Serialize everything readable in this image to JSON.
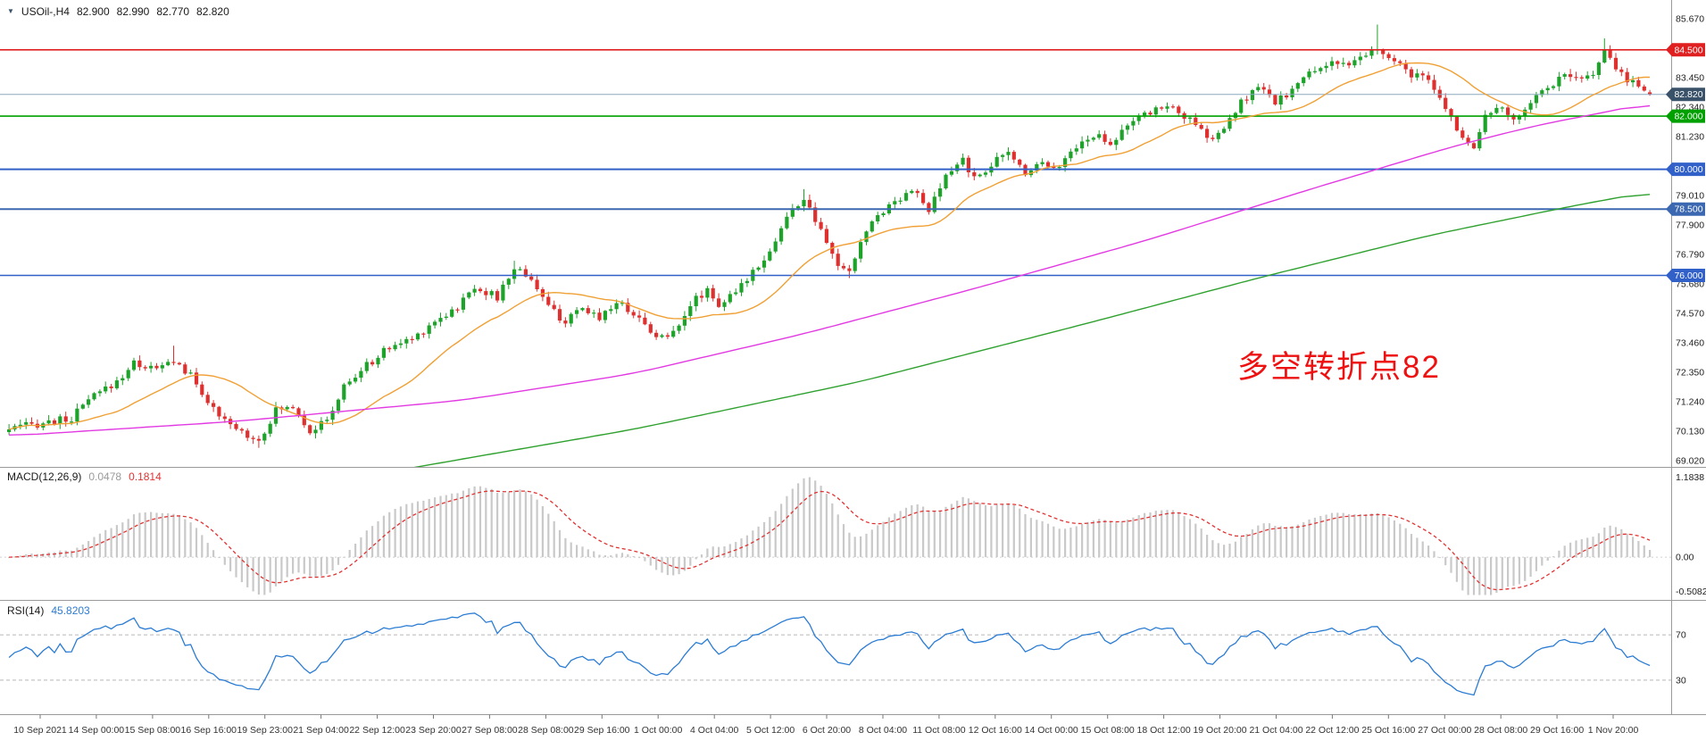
{
  "header": {
    "symbol_period": "USOil-,H4",
    "open": "82.900",
    "high": "82.990",
    "low": "82.770",
    "close": "82.820"
  },
  "indicator_labels": {
    "macd_name": "MACD(12,26,9)",
    "macd_main": "0.0478",
    "macd_signal": "0.1814",
    "rsi_name": "RSI(14)",
    "rsi_value": "45.8203"
  },
  "annotation": {
    "text": "多空转折点82",
    "color": "#ee1111"
  },
  "chart_data": {
    "type": "candlestick",
    "symbol": "USOil-",
    "timeframe": "H4",
    "current_ohlc": {
      "open": 82.9,
      "high": 82.99,
      "low": 82.77,
      "close": 82.82
    },
    "bars_total": 290,
    "price_axis": {
      "min": 69.02,
      "max": 85.67,
      "ticks": [
        "85.670",
        "84.560",
        "83.450",
        "82.340",
        "81.230",
        "80.120",
        "79.010",
        "77.900",
        "76.790",
        "75.680",
        "74.570",
        "73.460",
        "72.350",
        "71.240",
        "70.130",
        "69.020"
      ]
    },
    "time_axis": [
      "10 Sep 2021",
      "14 Sep 00:00",
      "15 Sep 08:00",
      "16 Sep 16:00",
      "19 Sep 23:00",
      "21 Sep 04:00",
      "22 Sep 12:00",
      "23 Sep 20:00",
      "27 Sep 08:00",
      "28 Sep 08:00",
      "29 Sep 16:00",
      "1 Oct 00:00",
      "4 Oct 04:00",
      "5 Oct 12:00",
      "6 Oct 20:00",
      "8 Oct 04:00",
      "11 Oct 08:00",
      "12 Oct 16:00",
      "14 Oct 00:00",
      "15 Oct 08:00",
      "18 Oct 12:00",
      "19 Oct 20:00",
      "21 Oct 04:00",
      "22 Oct 12:00",
      "25 Oct 16:00",
      "27 Oct 00:00",
      "28 Oct 08:00",
      "29 Oct 16:00",
      "1 Nov 20:00"
    ],
    "price_path_anchors": [
      [
        0,
        70.2
      ],
      [
        6,
        70.45
      ],
      [
        11,
        70.6
      ],
      [
        14,
        71.3
      ],
      [
        19,
        72.0
      ],
      [
        22,
        72.7
      ],
      [
        26,
        72.45
      ],
      [
        29,
        72.8
      ],
      [
        32,
        72.2
      ],
      [
        34,
        71.6
      ],
      [
        37,
        70.6
      ],
      [
        41,
        70.1
      ],
      [
        44,
        69.8
      ],
      [
        47,
        70.9
      ],
      [
        50,
        71.1
      ],
      [
        53,
        70.15
      ],
      [
        56,
        70.5
      ],
      [
        59,
        71.8
      ],
      [
        63,
        72.6
      ],
      [
        67,
        73.3
      ],
      [
        71,
        73.6
      ],
      [
        75,
        74.3
      ],
      [
        79,
        74.8
      ],
      [
        82,
        75.6
      ],
      [
        86,
        75.15
      ],
      [
        89,
        76.3
      ],
      [
        92,
        75.9
      ],
      [
        95,
        74.8
      ],
      [
        98,
        74.25
      ],
      [
        101,
        74.7
      ],
      [
        104,
        74.45
      ],
      [
        107,
        75.0
      ],
      [
        110,
        74.6
      ],
      [
        113,
        73.9
      ],
      [
        116,
        73.6
      ],
      [
        120,
        74.9
      ],
      [
        123,
        75.5
      ],
      [
        125,
        74.9
      ],
      [
        128,
        75.3
      ],
      [
        131,
        76.2
      ],
      [
        134,
        76.9
      ],
      [
        137,
        78.2
      ],
      [
        140,
        78.9
      ],
      [
        143,
        77.6
      ],
      [
        146,
        76.4
      ],
      [
        148,
        76.05
      ],
      [
        150,
        77.3
      ],
      [
        153,
        78.3
      ],
      [
        156,
        78.8
      ],
      [
        159,
        79.3
      ],
      [
        162,
        78.4
      ],
      [
        165,
        79.7
      ],
      [
        168,
        80.4
      ],
      [
        170,
        79.6
      ],
      [
        173,
        80.2
      ],
      [
        176,
        80.6
      ],
      [
        179,
        79.9
      ],
      [
        182,
        80.3
      ],
      [
        185,
        80.1
      ],
      [
        188,
        80.9
      ],
      [
        192,
        81.3
      ],
      [
        194,
        81.0
      ],
      [
        197,
        81.7
      ],
      [
        200,
        82.0
      ],
      [
        203,
        82.4
      ],
      [
        206,
        82.2
      ],
      [
        209,
        81.6
      ],
      [
        212,
        81.1
      ],
      [
        215,
        81.8
      ],
      [
        217,
        82.5
      ],
      [
        220,
        83.1
      ],
      [
        223,
        82.5
      ],
      [
        226,
        83.0
      ],
      [
        229,
        83.6
      ],
      [
        233,
        84.1
      ],
      [
        236,
        83.8
      ],
      [
        238,
        84.2
      ],
      [
        241,
        84.5
      ],
      [
        244,
        84.0
      ],
      [
        247,
        83.6
      ],
      [
        250,
        83.3
      ],
      [
        253,
        82.3
      ],
      [
        256,
        81.2
      ],
      [
        258,
        80.9
      ],
      [
        260,
        81.9
      ],
      [
        262,
        82.4
      ],
      [
        265,
        81.8
      ],
      [
        268,
        82.6
      ],
      [
        271,
        83.1
      ],
      [
        274,
        83.5
      ],
      [
        277,
        83.3
      ],
      [
        279,
        83.7
      ],
      [
        281,
        84.4
      ],
      [
        283,
        83.8
      ],
      [
        285,
        83.4
      ],
      [
        287,
        83.2
      ],
      [
        289,
        82.82
      ]
    ],
    "wick_extremes": [
      [
        29,
        73.35,
        "high"
      ],
      [
        44,
        69.5,
        "low"
      ],
      [
        89,
        76.55,
        "high"
      ],
      [
        140,
        79.25,
        "high"
      ],
      [
        148,
        75.9,
        "low"
      ],
      [
        241,
        85.45,
        "high"
      ],
      [
        281,
        84.93,
        "high"
      ]
    ],
    "horizontal_levels": [
      {
        "label": "84.500",
        "price": 84.5,
        "line": "#e02020",
        "badge": "#e02020",
        "width": 1.6,
        "role": "resistance"
      },
      {
        "label": "82.000",
        "price": 82.0,
        "line": "#00a000",
        "badge": "#00a000",
        "width": 1.6,
        "role": "support"
      },
      {
        "label": "80.000",
        "price": 80.0,
        "line": "#3060c8",
        "badge": "#3060c8",
        "width": 2,
        "role": "support"
      },
      {
        "label": "78.500",
        "price": 78.5,
        "line": "#3b68b0",
        "badge": "#3b68b0",
        "width": 2,
        "role": "support"
      },
      {
        "label": "76.000",
        "price": 76.0,
        "line": "#3060c8",
        "badge": "#3060c8",
        "width": 1.6,
        "role": "support"
      },
      {
        "label": "82.820",
        "price": 82.82,
        "line": "#8aa8bf",
        "badge": "#3a5269",
        "width": 1,
        "role": "current-price"
      }
    ],
    "moving_averages": [
      {
        "name": "fast",
        "period": 20,
        "color": "#f0a035"
      },
      {
        "name": "medium",
        "color": "#e23ae2",
        "anchors": [
          [
            0,
            69.95
          ],
          [
            40,
            70.5
          ],
          [
            80,
            71.3
          ],
          [
            110,
            72.3
          ],
          [
            140,
            73.8
          ],
          [
            170,
            75.5
          ],
          [
            200,
            77.3
          ],
          [
            230,
            79.3
          ],
          [
            255,
            80.9
          ],
          [
            270,
            81.7
          ],
          [
            280,
            82.1
          ],
          [
            289,
            82.5
          ]
        ]
      },
      {
        "name": "slow",
        "color": "#2fa12f",
        "anchors": [
          [
            40,
            67.6
          ],
          [
            75,
            68.9
          ],
          [
            110,
            70.2
          ],
          [
            150,
            72.0
          ],
          [
            190,
            74.2
          ],
          [
            220,
            75.9
          ],
          [
            250,
            77.5
          ],
          [
            275,
            78.6
          ],
          [
            289,
            79.15
          ]
        ]
      }
    ],
    "colors": {
      "up": "#1da32a",
      "down": "#df3030",
      "macd_bar": "#c9c9c9",
      "macd_signal": "#e03232",
      "rsi_line": "#2b7cd3"
    },
    "indicators": {
      "macd": {
        "params": "12,26,9",
        "value_main": 0.0478,
        "value_signal": 0.1814,
        "scale_values": [
          1.1838,
          0,
          -0.5082
        ],
        "scale_labels": [
          "1.1838",
          "0.00",
          "-0.5082"
        ]
      },
      "rsi": {
        "period": 14,
        "value": 45.8203,
        "levels": [
          70,
          30
        ],
        "level_labels": [
          "70",
          "30"
        ]
      }
    }
  }
}
